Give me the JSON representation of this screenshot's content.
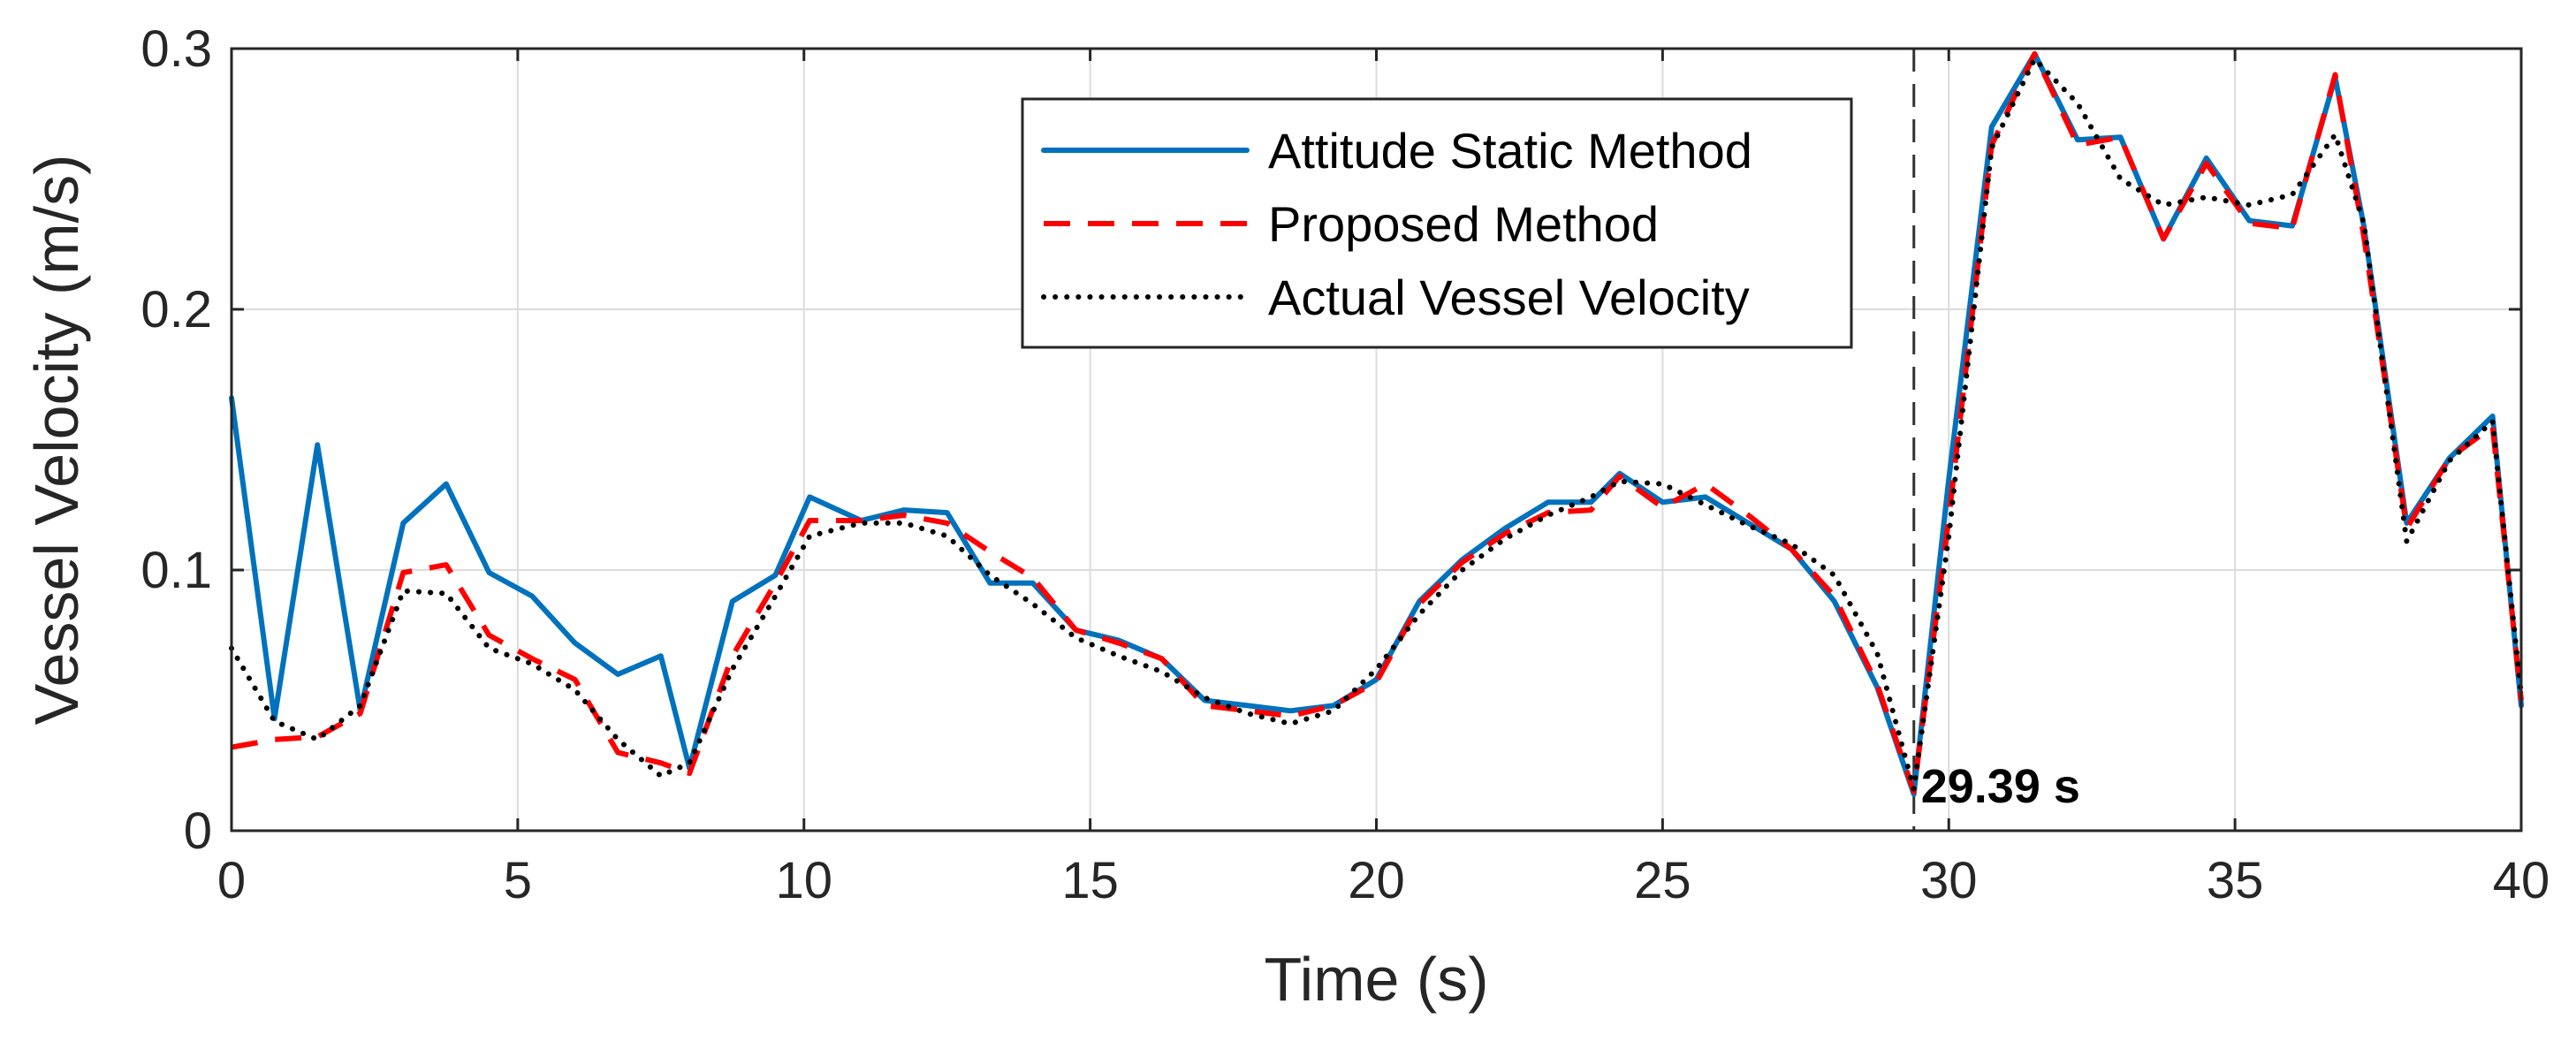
{
  "chart_data": {
    "type": "line",
    "title": "",
    "xlabel": "Time (s)",
    "ylabel": "Vessel Velocity (m/s)",
    "xlim": [
      0,
      40
    ],
    "ylim": [
      0,
      0.3
    ],
    "xticks": [
      0,
      5,
      10,
      15,
      20,
      25,
      30,
      35,
      40
    ],
    "yticks": [
      0,
      0.1,
      0.2,
      0.3
    ],
    "xtick_labels": [
      "0",
      "5",
      "10",
      "15",
      "20",
      "25",
      "30",
      "35",
      "40"
    ],
    "ytick_labels": [
      "0",
      "0.1",
      "0.2",
      "0.3"
    ],
    "grid": true,
    "legend_position": "top-center",
    "series": [
      {
        "name": "Attitude Static Method",
        "color": "#0072BD",
        "style": "solid",
        "x": [
          0,
          0.75,
          1.5,
          2.25,
          3.0,
          3.75,
          4.5,
          5.25,
          6.0,
          6.75,
          7.5,
          8.0,
          8.75,
          9.5,
          10.1,
          11.0,
          11.75,
          12.5,
          13.25,
          14.0,
          14.75,
          15.5,
          16.25,
          17.0,
          17.75,
          18.5,
          19.25,
          20.0,
          20.75,
          21.5,
          22.25,
          23.0,
          23.75,
          24.25,
          25.0,
          25.75,
          26.5,
          27.25,
          28.0,
          28.75,
          29.39,
          30.0,
          30.75,
          31.5,
          32.25,
          33.0,
          33.75,
          34.5,
          35.25,
          36.0,
          36.75,
          37.25,
          38.0,
          38.75,
          39.5,
          40.0
        ],
        "values": [
          0.166,
          0.043,
          0.148,
          0.046,
          0.118,
          0.133,
          0.099,
          0.09,
          0.072,
          0.06,
          0.067,
          0.024,
          0.088,
          0.098,
          0.128,
          0.119,
          0.123,
          0.122,
          0.095,
          0.095,
          0.077,
          0.073,
          0.066,
          0.05,
          0.048,
          0.046,
          0.048,
          0.058,
          0.088,
          0.104,
          0.116,
          0.126,
          0.126,
          0.137,
          0.126,
          0.128,
          0.118,
          0.108,
          0.088,
          0.055,
          0.014,
          0.135,
          0.27,
          0.298,
          0.265,
          0.266,
          0.227,
          0.258,
          0.234,
          0.232,
          0.289,
          0.232,
          0.118,
          0.143,
          0.159,
          0.048
        ]
      },
      {
        "name": "Proposed Method",
        "color": "#FF0000",
        "style": "dashed",
        "x": [
          0,
          0.75,
          1.5,
          2.25,
          3.0,
          3.75,
          4.5,
          5.25,
          6.0,
          6.75,
          7.5,
          8.0,
          8.75,
          9.5,
          10.1,
          11.0,
          11.75,
          12.5,
          13.25,
          14.0,
          14.75,
          15.5,
          16.25,
          17.0,
          17.75,
          18.5,
          19.25,
          20.0,
          20.75,
          21.5,
          22.25,
          23.0,
          23.75,
          24.25,
          25.0,
          25.75,
          26.5,
          27.25,
          28.0,
          28.75,
          29.39,
          30.0,
          30.75,
          31.5,
          32.25,
          33.0,
          33.75,
          34.5,
          35.25,
          36.0,
          36.75,
          37.25,
          38.0,
          38.75,
          39.5,
          40.0
        ],
        "values": [
          0.032,
          0.035,
          0.036,
          0.045,
          0.099,
          0.102,
          0.075,
          0.066,
          0.058,
          0.03,
          0.026,
          0.022,
          0.067,
          0.095,
          0.119,
          0.119,
          0.121,
          0.118,
          0.107,
          0.097,
          0.077,
          0.072,
          0.066,
          0.048,
          0.046,
          0.044,
          0.048,
          0.057,
          0.087,
          0.103,
          0.114,
          0.122,
          0.123,
          0.136,
          0.124,
          0.133,
          0.121,
          0.108,
          0.09,
          0.056,
          0.015,
          0.12,
          0.263,
          0.298,
          0.263,
          0.266,
          0.227,
          0.256,
          0.233,
          0.231,
          0.29,
          0.228,
          0.116,
          0.143,
          0.155,
          0.05
        ]
      },
      {
        "name": "Actual Vessel Velocity",
        "color": "#000000",
        "style": "dotted",
        "x": [
          0,
          0.75,
          1.5,
          2.25,
          3.0,
          3.75,
          4.5,
          5.25,
          6.0,
          6.75,
          7.5,
          8.0,
          8.75,
          9.5,
          10.1,
          11.0,
          11.75,
          12.5,
          13.25,
          14.0,
          14.75,
          15.5,
          16.25,
          17.0,
          17.75,
          18.5,
          19.25,
          20.0,
          20.75,
          21.5,
          22.25,
          23.0,
          23.75,
          24.25,
          25.0,
          25.75,
          26.5,
          27.25,
          28.0,
          28.75,
          29.39,
          30.0,
          30.75,
          31.5,
          32.25,
          33.0,
          33.75,
          34.5,
          35.25,
          36.0,
          36.75,
          37.25,
          38.0,
          38.75,
          39.5,
          40.0
        ],
        "values": [
          0.07,
          0.042,
          0.035,
          0.048,
          0.092,
          0.091,
          0.07,
          0.064,
          0.054,
          0.035,
          0.021,
          0.026,
          0.062,
          0.09,
          0.113,
          0.118,
          0.118,
          0.113,
          0.098,
          0.087,
          0.074,
          0.067,
          0.061,
          0.051,
          0.045,
          0.041,
          0.046,
          0.062,
          0.083,
          0.1,
          0.112,
          0.121,
          0.128,
          0.134,
          0.133,
          0.125,
          0.117,
          0.11,
          0.098,
          0.068,
          0.016,
          0.113,
          0.262,
          0.296,
          0.279,
          0.25,
          0.24,
          0.243,
          0.24,
          0.244,
          0.267,
          0.233,
          0.111,
          0.142,
          0.157,
          0.052
        ]
      }
    ],
    "annotations": [
      {
        "type": "vline",
        "x": 29.39,
        "color": "#333333",
        "style": "dashed"
      },
      {
        "type": "text",
        "text": "29.39 s",
        "x": 29.39,
        "y": 0.015
      }
    ]
  }
}
